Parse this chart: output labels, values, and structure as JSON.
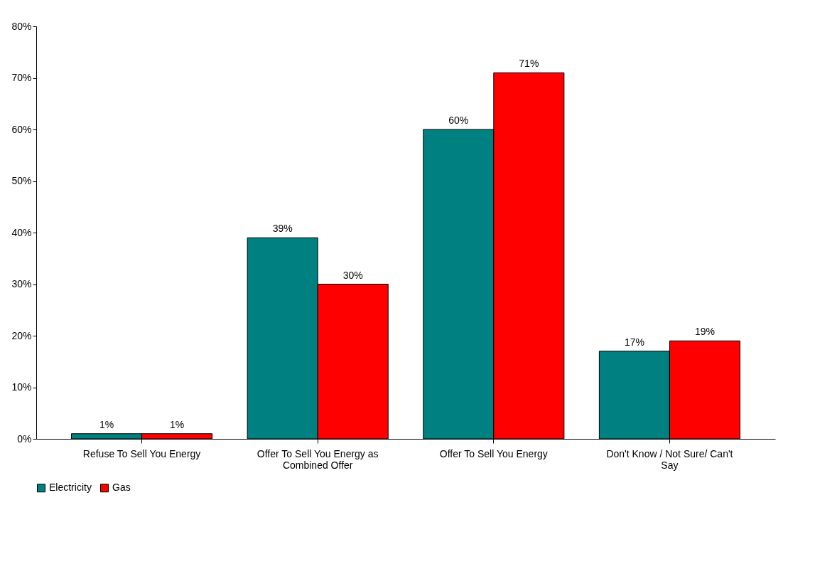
{
  "chart_data": {
    "type": "bar",
    "categories": [
      "Refuse To Sell You Energy",
      "Offer To Sell You Energy as Combined Offer",
      "Offer To Sell You Energy",
      "Don't Know / Not Sure/ Can't Say"
    ],
    "series": [
      {
        "name": "Electricity",
        "color": "#008080",
        "values": [
          1,
          39,
          60,
          17
        ],
        "value_labels": [
          "1%",
          "39%",
          "60%",
          "17%"
        ]
      },
      {
        "name": "Gas",
        "color": "#ff0000",
        "values": [
          1,
          30,
          71,
          19
        ],
        "value_labels": [
          "1%",
          "30%",
          "71%",
          "19%"
        ]
      }
    ],
    "ylim": [
      0,
      80
    ],
    "yticks": [
      {
        "value": 0,
        "label": "0%"
      },
      {
        "value": 10,
        "label": "10%"
      },
      {
        "value": 20,
        "label": "20%"
      },
      {
        "value": 30,
        "label": "30%"
      },
      {
        "value": 40,
        "label": "40%"
      },
      {
        "value": 50,
        "label": "50%"
      },
      {
        "value": 60,
        "label": "60%"
      },
      {
        "value": 70,
        "label": "70%"
      },
      {
        "value": 80,
        "label": "80%"
      }
    ],
    "grid": false,
    "legend": "bottom"
  }
}
